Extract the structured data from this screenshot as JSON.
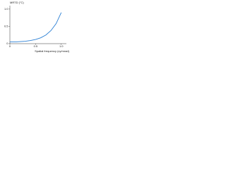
{
  "chart_data": {
    "type": "line",
    "y_label": "MRTD (°C)",
    "x_label": "Spatial frequency (cy/mrad)",
    "x": [
      0,
      0.1,
      0.2,
      0.3,
      0.4,
      0.5,
      0.6,
      0.7,
      0.8,
      0.9,
      1.0
    ],
    "series": [
      {
        "color": "#2a7fd4",
        "values": [
          0.05,
          0.05,
          0.06,
          0.07,
          0.09,
          0.12,
          0.17,
          0.25,
          0.38,
          0.58,
          0.9
        ]
      }
    ],
    "xlim": [
      0,
      1.1
    ],
    "ylim": [
      0,
      1.1
    ],
    "xticks": [
      0,
      0.5,
      {
        "value": 1,
        "label": "1.0"
      }
    ],
    "yticks": [
      0,
      0.5,
      {
        "value": 1,
        "label": "1.0"
      }
    ]
  }
}
